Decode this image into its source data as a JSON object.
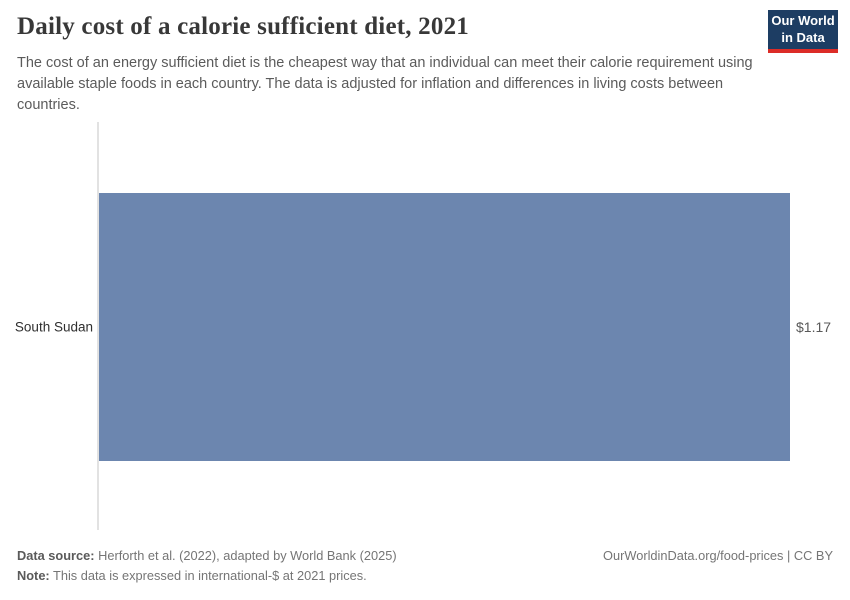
{
  "header": {
    "title": "Daily cost of a calorie sufficient diet, 2021",
    "subtitle": "The cost of an energy sufficient diet is the cheapest way that an individual can meet their calorie requirement using available staple foods in each country. The data is adjusted for inflation and differences in living costs between countries.",
    "logo": {
      "line1": "Our World",
      "line2": "in Data"
    }
  },
  "chart_data": {
    "type": "bar",
    "orientation": "horizontal",
    "title": "Daily cost of a calorie sufficient diet, 2021",
    "categories": [
      "South Sudan"
    ],
    "values": [
      1.17
    ],
    "value_labels": [
      "$1.17"
    ],
    "unit": "international-$",
    "xlabel": "",
    "ylabel": "",
    "xlim": [
      0,
      1.17
    ],
    "grid": false,
    "legend": false,
    "bar_color": "#6c86af"
  },
  "footer": {
    "data_source_label": "Data source:",
    "data_source_text": " Herforth et al. (2022), adapted by World Bank (2025)",
    "note_label": "Note:",
    "note_text": " This data is expressed in international-$ at 2021 prices.",
    "right_text": "OurWorldinData.org/food-prices | CC BY"
  },
  "colors": {
    "bar": "#6c86af",
    "logo_background": "#1d3d63",
    "logo_accent": "#dc2c27",
    "axis_line": "#e2e2e2"
  }
}
